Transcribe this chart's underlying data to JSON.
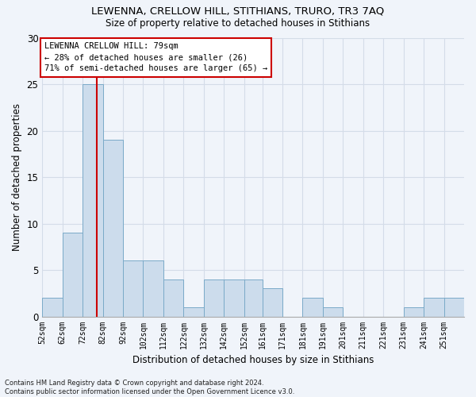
{
  "title1": "LEWENNA, CRELLOW HILL, STITHIANS, TRURO, TR3 7AQ",
  "title2": "Size of property relative to detached houses in Stithians",
  "xlabel": "Distribution of detached houses by size in Stithians",
  "ylabel": "Number of detached properties",
  "bins": [
    52,
    62,
    72,
    82,
    92,
    102,
    112,
    122,
    132,
    142,
    152,
    161,
    171,
    181,
    191,
    201,
    211,
    221,
    231,
    241,
    251
  ],
  "bar_heights": [
    2,
    9,
    25,
    19,
    6,
    6,
    4,
    1,
    4,
    4,
    4,
    3,
    0,
    2,
    1,
    0,
    0,
    0,
    1,
    2,
    2
  ],
  "bar_color": "#ccdcec",
  "bar_edge_color": "#7aaac8",
  "vline_x": 79,
  "vline_color": "#cc0000",
  "annotation_text": "LEWENNA CRELLOW HILL: 79sqm\n← 28% of detached houses are smaller (26)\n71% of semi-detached houses are larger (65) →",
  "annotation_box_color": "#ffffff",
  "annotation_box_edge": "#cc0000",
  "ylim": [
    0,
    30
  ],
  "grid_color": "#d4dce8",
  "footer_text": "Contains HM Land Registry data © Crown copyright and database right 2024.\nContains public sector information licensed under the Open Government Licence v3.0.",
  "tick_labels": [
    "52sqm",
    "62sqm",
    "72sqm",
    "82sqm",
    "92sqm",
    "102sqm",
    "112sqm",
    "122sqm",
    "132sqm",
    "142sqm",
    "152sqm",
    "161sqm",
    "171sqm",
    "181sqm",
    "191sqm",
    "201sqm",
    "211sqm",
    "221sqm",
    "231sqm",
    "241sqm",
    "251sqm"
  ],
  "bg_color": "#f0f4fa"
}
